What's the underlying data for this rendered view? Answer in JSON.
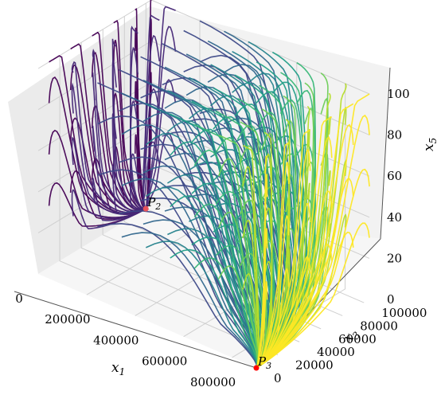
{
  "chart_data": {
    "type": "line",
    "title": "",
    "xlabel": "x1",
    "ylabel": "x3",
    "zlabel": "x5",
    "x_ticks": [
      "0",
      "200000",
      "400000",
      "600000",
      "800000"
    ],
    "y_ticks": [
      "0",
      "20000",
      "40000",
      "60000",
      "80000",
      "100000"
    ],
    "z_ticks": [
      "0",
      "20",
      "40",
      "60",
      "80",
      "100"
    ],
    "xlim": [
      0,
      900000
    ],
    "ylim": [
      0,
      105000
    ],
    "zlim": [
      0,
      100
    ],
    "colormap": "viridis",
    "grid": true,
    "points": [
      {
        "label": "P2",
        "x": 0,
        "y": 100000,
        "z": 0,
        "color": "#e8535a"
      },
      {
        "label": "P3",
        "x": 900000,
        "y": 0,
        "z": 0,
        "color": "#ff0000"
      }
    ],
    "series_description": "Trajectories (x1, x3, x5) starting from a grid of initial conditions; colored by initial x1 (viridis). Dark trajectories converge to P2, others converge to P3."
  }
}
